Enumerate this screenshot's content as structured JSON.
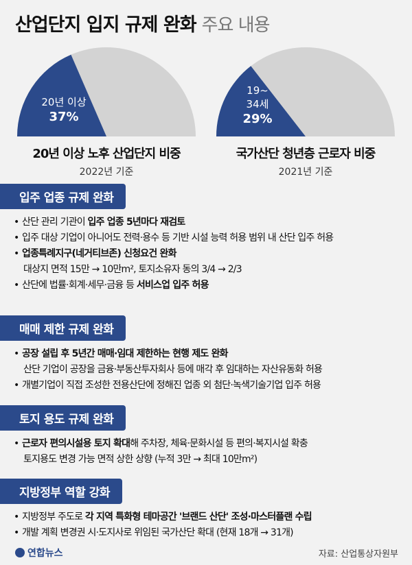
{
  "title": {
    "main": "산업단지 입지 규제 완화",
    "sub": "주요 내용"
  },
  "stats": [
    {
      "label_line1": "20년 이상",
      "label_line2": "",
      "value": "37%",
      "fraction": 0.37,
      "title": "20년 이상 노후 산업단지 비중",
      "year": "2022년 기준"
    },
    {
      "label_line1": "19~",
      "label_line2": "34세",
      "value": "29%",
      "fraction": 0.29,
      "title": "국가산단 청년층 근로자 비중",
      "year": "2021년 기준"
    }
  ],
  "colors": {
    "accent": "#2b4a8b",
    "pie_rest": "#d3d3d3"
  },
  "sections": [
    {
      "header": "입주 업종 규제 완화",
      "items": [
        {
          "pre": "산단 관리 기관이 ",
          "hl": "입주 업종 5년마다 재검토",
          "post": "",
          "cont": ""
        },
        {
          "pre": "입주 대상 기업이 아니어도 전력·용수 등 기반 시설 능력 허용 범위 내 산단 입주 허용",
          "hl": "",
          "post": "",
          "cont": ""
        },
        {
          "pre": "",
          "hl": "업종특례지구(네거티브존) 신청요건 완화",
          "post": "",
          "cont": "대상지 면적 15만 → 10만m², 토지소유자 동의 3/4 → 2/3"
        },
        {
          "pre": "산단에 법률·회계·세무·금융 등 ",
          "hl": "서비스업 입주 허용",
          "post": "",
          "cont": ""
        }
      ]
    },
    {
      "header": "매매 제한 규제 완화",
      "items": [
        {
          "pre": "",
          "hl": "공장 설립 후 5년간 매매·임대 제한하는 현행 제도 완화",
          "post": "",
          "cont": "산단 기업이 공장을 금융·부동산투자회사 등에 매각 후 임대하는 자산유동화 허용"
        },
        {
          "pre": "개별기업이 직접 조성한 전용산단에 정해진 업종 외 첨단·녹색기술기업 입주 허용",
          "hl": "",
          "post": "",
          "cont": ""
        }
      ]
    },
    {
      "header": "토지 용도 규제 완화",
      "items": [
        {
          "pre": "",
          "hl": "근로자 편의시설용 토지 확대",
          "post": "해 주차장, 체육·문화시설 등 편의·복지시설 확충",
          "cont": "토지용도 변경 가능 면적 상한 상향 (누적 3만 → 최대 10만m²)"
        }
      ]
    },
    {
      "header": "지방정부 역할 강화",
      "items": [
        {
          "pre": "지방정부 주도로 ",
          "hl": "각 지역 특화형 테마공간 '브랜드 산단' 조성·마스터플랜 수립",
          "post": "",
          "cont": ""
        },
        {
          "pre": "개발 계획 변경권 시·도지사로 위임된 국가산단 확대 (현재 18개 → 31개)",
          "hl": "",
          "post": "",
          "cont": ""
        }
      ]
    }
  ],
  "footer": {
    "logo": "연합뉴스",
    "source": "자료: 산업통상자원부"
  }
}
